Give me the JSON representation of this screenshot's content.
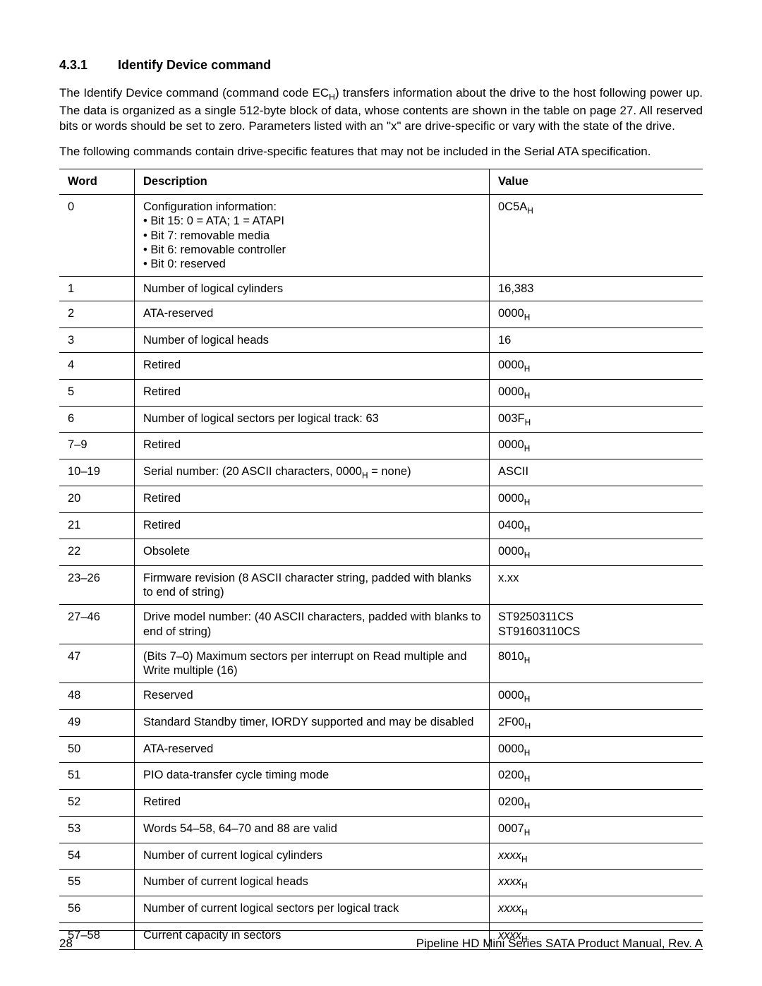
{
  "section": {
    "number": "4.3.1",
    "title": "Identify Device command"
  },
  "paragraphs": {
    "p1_a": "The Identify Device command (command code EC",
    "p1_b": ") transfers information about the drive to the host following power up. The data is organized as a single 512-byte block of data, whose contents are shown in the table on page 27. All reserved bits or words should be set to zero. Parameters listed with an \"x\" are drive-specific or vary with the state of the drive.",
    "p2": "The following commands contain drive-specific features that may not be included in the Serial ATA specification."
  },
  "table": {
    "headers": {
      "c1": "Word",
      "c2": "Description",
      "c3": "Value"
    },
    "rows": [
      {
        "word": "0",
        "desc_lead": "Configuration information:",
        "bits": [
          "Bit 15: 0 = ATA; 1 = ATAPI",
          "Bit 7: removable media",
          "Bit 6: removable controller",
          "Bit 0: reserved"
        ],
        "value_hex": "0C5A"
      },
      {
        "word": "1",
        "desc": "Number of logical cylinders",
        "value_plain": "16,383"
      },
      {
        "word": "2",
        "desc": "ATA-reserved",
        "value_hex": "0000"
      },
      {
        "word": "3",
        "desc": "Number of logical heads",
        "value_plain": "16"
      },
      {
        "word": "4",
        "desc": "Retired",
        "value_hex": "0000"
      },
      {
        "word": "5",
        "desc": "Retired",
        "value_hex": "0000"
      },
      {
        "word": "6",
        "desc": "Number of logical sectors per logical track: 63",
        "value_hex": "003F"
      },
      {
        "word": "7–9",
        "desc": "Retired",
        "value_hex": "0000"
      },
      {
        "word": "10–19",
        "desc_a": "Serial number: (20 ASCII characters, 0000",
        "desc_b": " = none)",
        "value_plain": "ASCII"
      },
      {
        "word": "20",
        "desc": "Retired",
        "value_hex": "0000"
      },
      {
        "word": "21",
        "desc": "Retired",
        "value_hex": "0400"
      },
      {
        "word": "22",
        "desc": "Obsolete",
        "value_hex": "0000"
      },
      {
        "word": "23–26",
        "desc": "Firmware revision (8 ASCII character string, padded with blanks to end of string)",
        "value_plain": "x.xx"
      },
      {
        "word": "27–46",
        "desc": "Drive model number: (40 ASCII characters, padded with blanks to end of string)",
        "value_lines": [
          "ST9250311CS",
          "ST91603110CS"
        ]
      },
      {
        "word": "47",
        "desc": "(Bits 7–0) Maximum sectors per interrupt on Read multiple and Write multiple (16)",
        "value_hex": "8010"
      },
      {
        "word": "48",
        "desc": "Reserved",
        "value_hex": "0000"
      },
      {
        "word": "49",
        "desc": "Standard Standby timer, IORDY supported and may be disabled",
        "value_hex": "2F00"
      },
      {
        "word": "50",
        "desc": "ATA-reserved",
        "value_hex": "0000"
      },
      {
        "word": "51",
        "desc": "PIO data-transfer cycle timing mode",
        "value_hex": "0200"
      },
      {
        "word": "52",
        "desc": "Retired",
        "value_hex": "0200"
      },
      {
        "word": "53",
        "desc": "Words 54–58, 64–70 and 88 are valid",
        "value_hex": "0007"
      },
      {
        "word": "54",
        "desc": "Number of current logical cylinders",
        "value_xxxx": true
      },
      {
        "word": "55",
        "desc": "Number of current logical heads",
        "value_xxxx": true
      },
      {
        "word": "56",
        "desc": "Number of current logical sectors per logical track",
        "value_xxxx": true
      },
      {
        "word": "57–58",
        "desc": "Current capacity in sectors",
        "value_xxxx": true
      }
    ]
  },
  "footer": {
    "page": "28",
    "doc": "Pipeline HD Mini Series SATA Product Manual, Rev. A"
  }
}
